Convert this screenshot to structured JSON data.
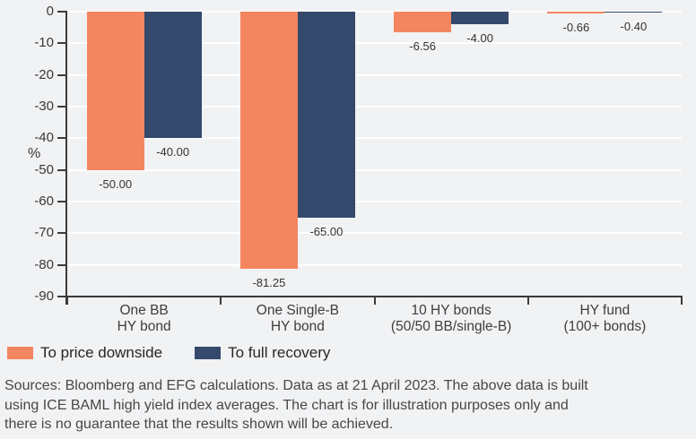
{
  "chart_data": {
    "type": "bar",
    "title": "",
    "ylabel": "%",
    "ylim": [
      0,
      -90
    ],
    "yticks": [
      0,
      -10,
      -20,
      -30,
      -40,
      -50,
      -60,
      -70,
      -80,
      -90
    ],
    "grid": true,
    "legend_position": "bottom-left",
    "categories": [
      [
        "One BB",
        "HY bond"
      ],
      [
        "One Single-B",
        "HY bond"
      ],
      [
        "10 HY bonds",
        "(50/50 BB/single-B)"
      ],
      [
        "HY fund",
        "(100+ bonds)"
      ]
    ],
    "series": [
      {
        "name": "To price downside",
        "color": "#F4865F",
        "values": [
          -50.0,
          -81.25,
          -6.56,
          -0.66
        ],
        "labels": [
          "-50.00",
          "-81.25",
          "-6.56",
          "-0.66"
        ]
      },
      {
        "name": "To full recovery",
        "color": "#34496B",
        "values": [
          -40.0,
          -65.0,
          -4.0,
          -0.4
        ],
        "labels": [
          "-40.00",
          "-65.00",
          "-4.00",
          "-0.40"
        ]
      }
    ]
  },
  "source": {
    "lines": [
      "Sources: Bloomberg and EFG calculations. Data as at 21 April 2023. The above data is built",
      "using ICE BAML high yield index averages. The chart is for illustration purposes only and",
      "there is no guarantee that the results shown will be achieved."
    ]
  },
  "colors": {
    "background": "#F1F2F4",
    "gridline": "#FFFFFF",
    "axis": "#3B3B3B",
    "series_downside": "#F4865F",
    "series_recovery": "#34496B"
  }
}
